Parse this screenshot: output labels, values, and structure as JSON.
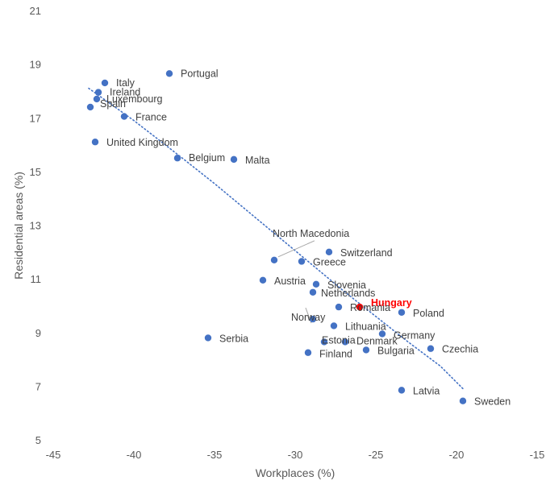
{
  "chart_data": {
    "type": "scatter",
    "xlabel": "Workplaces (%)",
    "ylabel": "Residential areas (%)",
    "xlim": [
      -45,
      -15
    ],
    "ylim": [
      5,
      21
    ],
    "xticks": [
      -45,
      -40,
      -35,
      -30,
      -25,
      -20,
      -15
    ],
    "yticks": [
      5,
      7,
      9,
      11,
      13,
      15,
      17,
      19,
      21
    ],
    "grid": false,
    "legend": "none",
    "colors": {
      "point": "#4472c4",
      "highlight": "#ff0000",
      "trendline": "#4472c4",
      "leader": "#a6a6a6"
    },
    "trendline": {
      "style": "dotted",
      "x": [
        -42.8,
        -40,
        -37,
        -35,
        -33,
        -31,
        -29,
        -27,
        -25,
        -23,
        -21,
        -19.5
      ],
      "y": [
        18.1,
        16.9,
        15.5,
        14.55,
        13.55,
        12.55,
        11.55,
        10.55,
        9.6,
        8.65,
        7.75,
        6.85
      ]
    },
    "points": [
      {
        "label": "Portugal",
        "x": -37.8,
        "y": 18.65
      },
      {
        "label": "Italy",
        "x": -41.8,
        "y": 18.3
      },
      {
        "label": "Ireland",
        "x": -42.2,
        "y": 17.95
      },
      {
        "label": "Luxembourg",
        "x": -42.3,
        "y": 17.7
      },
      {
        "label": "Spain",
        "x": -42.7,
        "y": 17.4
      },
      {
        "label": "France",
        "x": -40.6,
        "y": 17.05
      },
      {
        "label": "United Kingdom",
        "x": -42.4,
        "y": 16.1
      },
      {
        "label": "Belgium",
        "x": -37.3,
        "y": 15.5
      },
      {
        "label": "Malta",
        "x": -33.8,
        "y": 15.45
      },
      {
        "label": "North Macedonia",
        "x": -31.3,
        "y": 11.7
      },
      {
        "label": "Switzerland",
        "x": -27.9,
        "y": 12.0
      },
      {
        "label": "Greece",
        "x": -29.6,
        "y": 11.65
      },
      {
        "label": "Austria",
        "x": -32.0,
        "y": 10.95
      },
      {
        "label": "Slovenia",
        "x": -28.7,
        "y": 10.8
      },
      {
        "label": "Netherlands",
        "x": -28.9,
        "y": 10.5
      },
      {
        "label": "Hungary",
        "x": -26.0,
        "y": 9.95,
        "highlight": true
      },
      {
        "label": "Romania",
        "x": -27.3,
        "y": 9.95
      },
      {
        "label": "Poland",
        "x": -23.4,
        "y": 9.75
      },
      {
        "label": "Norway",
        "x": -28.9,
        "y": 9.5
      },
      {
        "label": "Lithuania",
        "x": -27.6,
        "y": 9.25
      },
      {
        "label": "Germany",
        "x": -24.6,
        "y": 8.95
      },
      {
        "label": "Estonia",
        "x": -28.2,
        "y": 8.65
      },
      {
        "label": "Denmark",
        "x": -26.9,
        "y": 8.65
      },
      {
        "label": "Serbia",
        "x": -35.4,
        "y": 8.8
      },
      {
        "label": "Finland",
        "x": -29.2,
        "y": 8.25
      },
      {
        "label": "Bulgaria",
        "x": -25.6,
        "y": 8.35
      },
      {
        "label": "Czechia",
        "x": -21.6,
        "y": 8.4
      },
      {
        "label": "Latvia",
        "x": -23.4,
        "y": 6.85
      },
      {
        "label": "Sweden",
        "x": -19.6,
        "y": 6.45
      }
    ]
  }
}
